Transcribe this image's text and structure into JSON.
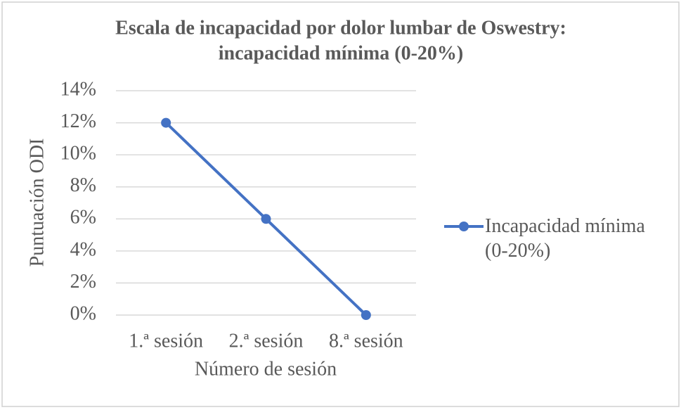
{
  "chart_data": {
    "type": "line",
    "title": [
      "Escala de incapacidad por dolor lumbar de  Oswestry:",
      "incapacidad mínima (0-20%)"
    ],
    "x_label": "Número de sesión",
    "y_label": "Puntuación ODI",
    "categories": [
      "1.ª sesión",
      "2.ª sesión",
      "8.ª sesión"
    ],
    "series": [
      {
        "name": "Incapacidad mínima (0-20%)",
        "color": "#4472c4",
        "values": [
          12,
          6,
          0
        ]
      }
    ],
    "ylim": [
      0,
      14
    ],
    "yticks": [
      {
        "value": 0,
        "label": "0%"
      },
      {
        "value": 2,
        "label": "2%"
      },
      {
        "value": 4,
        "label": "4%"
      },
      {
        "value": 6,
        "label": "6%"
      },
      {
        "value": 8,
        "label": "8%"
      },
      {
        "value": 10,
        "label": "10%"
      },
      {
        "value": 12,
        "label": "12%"
      },
      {
        "value": 14,
        "label": "14%"
      }
    ],
    "grid": true,
    "legend": "right"
  }
}
